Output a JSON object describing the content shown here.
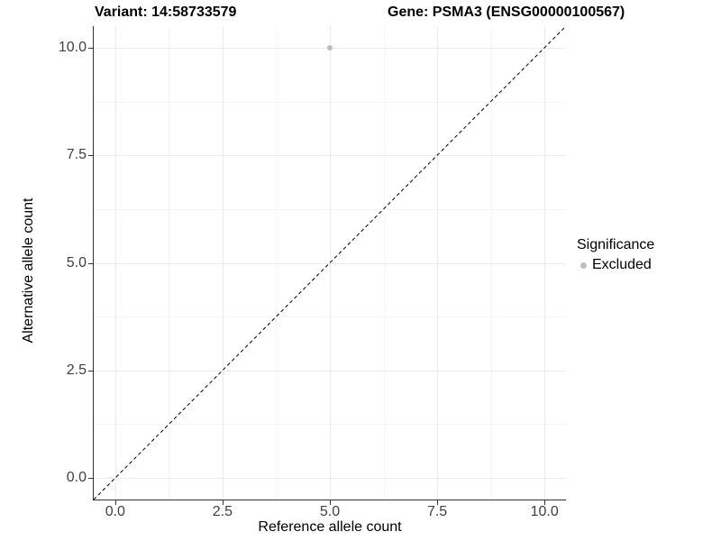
{
  "titles": {
    "variant": "Variant: 14:58733579",
    "gene": "Gene: PSMA3 (ENSG00000100567)"
  },
  "axes": {
    "x": {
      "label": "Reference allele count",
      "tick_labels": [
        "0.0",
        "2.5",
        "5.0",
        "7.5",
        "10.0"
      ]
    },
    "y": {
      "label": "Alternative allele count",
      "tick_labels": [
        "0.0",
        "2.5",
        "5.0",
        "7.5",
        "10.0"
      ]
    }
  },
  "legend": {
    "title": "Significance",
    "items": [
      {
        "label": "Excluded",
        "color": "#bdbdbd",
        "marker": "dot"
      }
    ]
  },
  "colors": {
    "axis_line": "#333333",
    "tick_label": "#404040",
    "grid_major": "#ebebeb",
    "grid_minor": "#f5f5f5",
    "reference_line": "#000000",
    "excluded_point": "#bdbdbd",
    "background": "#ffffff"
  },
  "chart_data": {
    "type": "scatter",
    "title_left": "Variant: 14:58733579",
    "title_right": "Gene: PSMA3 (ENSG00000100567)",
    "xlabel": "Reference allele count",
    "ylabel": "Alternative allele count",
    "xlim": [
      -0.5,
      10.5
    ],
    "ylim": [
      -0.5,
      10.5
    ],
    "x_ticks": [
      0.0,
      2.5,
      5.0,
      7.5,
      10.0
    ],
    "y_ticks": [
      0.0,
      2.5,
      5.0,
      7.5,
      10.0
    ],
    "grid": "major+minor",
    "series": [
      {
        "name": "Excluded",
        "color": "#bdbdbd",
        "points": [
          {
            "x": 5,
            "y": 10
          }
        ]
      }
    ],
    "reference_line": {
      "slope": 1,
      "intercept": 0,
      "style": "dashed",
      "color": "#000000"
    },
    "legend_title": "Significance",
    "legend_position": "right"
  }
}
